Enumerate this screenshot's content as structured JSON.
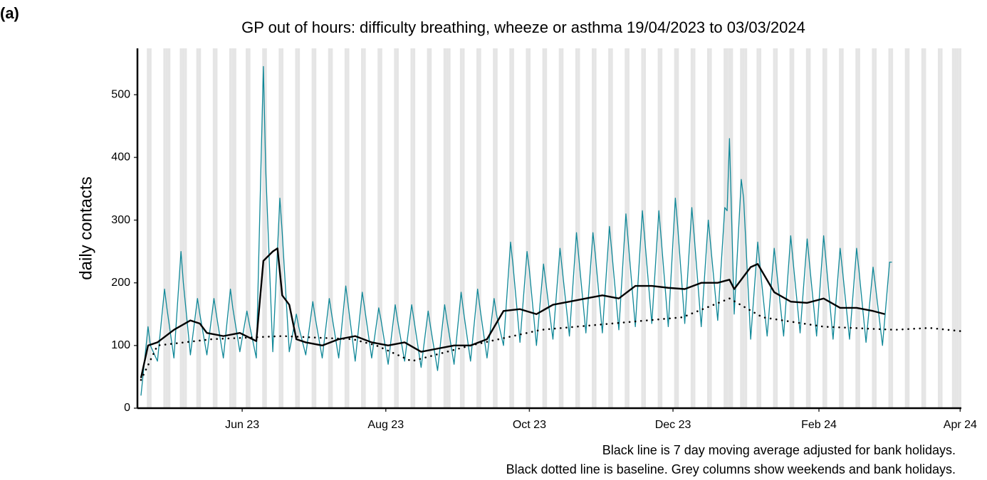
{
  "chart_data": {
    "type": "line",
    "panel_label": "(a)",
    "title": "GP out of hours: difficulty breathing, wheeze or asthma 19/04/2023 to 03/03/2024",
    "ylabel": "daily contacts",
    "notes": [
      "Black line is 7 day moving average adjusted for bank holidays.",
      "Black dotted line is baseline. Grey columns show weekends and bank holidays."
    ],
    "xlim": [
      -1.5,
      348.5
    ],
    "xticks": [
      {
        "value": 43,
        "label": "Jun 23"
      },
      {
        "value": 104,
        "label": "Aug 23"
      },
      {
        "value": 165,
        "label": "Oct 23"
      },
      {
        "value": 226,
        "label": "Dec 23"
      },
      {
        "value": 288,
        "label": "Feb 24"
      },
      {
        "value": 348,
        "label": "Apr 24"
      }
    ],
    "ylim": [
      0,
      574
    ],
    "yticks": [
      0,
      100,
      200,
      300,
      400,
      500
    ],
    "shade_color": "#e5e5e5",
    "shaded_days": [
      3,
      4,
      10,
      11,
      12,
      17,
      18,
      19,
      24,
      25,
      31,
      32,
      38,
      39,
      40,
      45,
      46,
      52,
      53,
      59,
      60,
      66,
      67,
      73,
      74,
      80,
      81,
      87,
      88,
      94,
      95,
      101,
      102,
      108,
      109,
      115,
      116,
      122,
      123,
      129,
      130,
      131,
      136,
      137,
      143,
      144,
      150,
      151,
      157,
      158,
      164,
      165,
      171,
      172,
      178,
      179,
      185,
      186,
      192,
      193,
      199,
      200,
      206,
      207,
      213,
      214,
      220,
      221,
      227,
      228,
      234,
      235,
      241,
      242,
      248,
      249,
      250,
      251,
      255,
      256,
      257,
      262,
      263,
      269,
      270,
      276,
      277,
      283,
      284,
      290,
      291,
      297,
      298,
      304,
      305,
      311,
      312,
      318,
      319,
      325,
      326,
      332,
      333,
      339,
      340,
      345,
      346,
      347,
      348
    ],
    "series": [
      {
        "color": "#108898",
        "style": "solid",
        "width": 1.3,
        "x": [
          0,
          3,
          4,
          7,
          10,
          11,
          14,
          17,
          18,
          21,
          24,
          25,
          28,
          31,
          32,
          35,
          38,
          39,
          42,
          45,
          46,
          49,
          52,
          53,
          56,
          59,
          60,
          63,
          66,
          67,
          70,
          73,
          74,
          77,
          80,
          81,
          84,
          87,
          88,
          91,
          94,
          95,
          98,
          101,
          102,
          105,
          108,
          109,
          112,
          115,
          116,
          119,
          122,
          123,
          126,
          129,
          130,
          133,
          136,
          137,
          140,
          143,
          144,
          147,
          150,
          151,
          154,
          157,
          158,
          161,
          164,
          165,
          168,
          171,
          172,
          175,
          178,
          179,
          182,
          185,
          186,
          189,
          192,
          193,
          196,
          199,
          200,
          203,
          206,
          207,
          210,
          213,
          214,
          217,
          220,
          221,
          224,
          227,
          228,
          231,
          234,
          235,
          238,
          241,
          242,
          245,
          248,
          249,
          250,
          252,
          255,
          256,
          259,
          262,
          263,
          266,
          269,
          270,
          273,
          276,
          277,
          280,
          283,
          284,
          287,
          290,
          291,
          294,
          297,
          298,
          301,
          304,
          305,
          308,
          311,
          312,
          315,
          318,
          319
        ],
        "values": [
          20,
          130,
          100,
          75,
          190,
          160,
          80,
          250,
          200,
          85,
          175,
          150,
          85,
          175,
          150,
          80,
          190,
          160,
          90,
          155,
          135,
          80,
          545,
          380,
          90,
          335,
          280,
          90,
          150,
          130,
          85,
          170,
          145,
          80,
          175,
          150,
          80,
          195,
          165,
          75,
          185,
          160,
          80,
          160,
          140,
          70,
          165,
          140,
          75,
          165,
          140,
          65,
          155,
          130,
          60,
          165,
          140,
          70,
          185,
          155,
          75,
          190,
          160,
          80,
          175,
          150,
          100,
          265,
          230,
          105,
          250,
          220,
          100,
          230,
          200,
          110,
          255,
          220,
          115,
          280,
          240,
          120,
          280,
          245,
          120,
          290,
          250,
          125,
          310,
          265,
          130,
          315,
          270,
          135,
          315,
          270,
          130,
          335,
          290,
          135,
          320,
          275,
          130,
          300,
          260,
          140,
          320,
          315,
          430,
          150,
          365,
          335,
          110,
          265,
          225,
          115,
          255,
          220,
          115,
          275,
          235,
          120,
          270,
          230,
          115,
          275,
          235,
          110,
          255,
          220,
          110,
          255,
          220,
          105,
          225,
          195,
          100,
          233,
          233
        ]
      },
      {
        "color": "#000000",
        "style": "solid",
        "width": 2.4,
        "x": [
          0,
          3,
          7,
          14,
          21,
          25,
          28,
          35,
          42,
          49,
          52,
          56,
          58,
          60,
          63,
          66,
          70,
          77,
          84,
          91,
          98,
          105,
          112,
          119,
          126,
          133,
          140,
          147,
          154,
          161,
          168,
          175,
          182,
          189,
          196,
          203,
          210,
          217,
          224,
          231,
          238,
          245,
          250,
          252,
          259,
          262,
          269,
          276,
          283,
          290,
          297,
          304,
          311,
          316
        ],
        "values": [
          48,
          100,
          105,
          125,
          140,
          135,
          120,
          115,
          120,
          107,
          235,
          250,
          255,
          180,
          165,
          110,
          105,
          100,
          110,
          115,
          105,
          100,
          105,
          90,
          95,
          100,
          100,
          110,
          155,
          158,
          150,
          165,
          170,
          175,
          180,
          175,
          195,
          195,
          192,
          190,
          200,
          200,
          205,
          190,
          225,
          230,
          185,
          170,
          168,
          175,
          160,
          160,
          155,
          150
        ]
      },
      {
        "color": "#000000",
        "style": "dotted",
        "width": 2.6,
        "x": [
          0,
          7,
          30,
          60,
          90,
          100,
          115,
          140,
          170,
          200,
          230,
          250,
          264,
          290,
          320,
          335,
          348
        ],
        "values": [
          45,
          100,
          110,
          115,
          110,
          100,
          75,
          100,
          125,
          135,
          145,
          175,
          145,
          130,
          125,
          128,
          123
        ]
      }
    ]
  }
}
